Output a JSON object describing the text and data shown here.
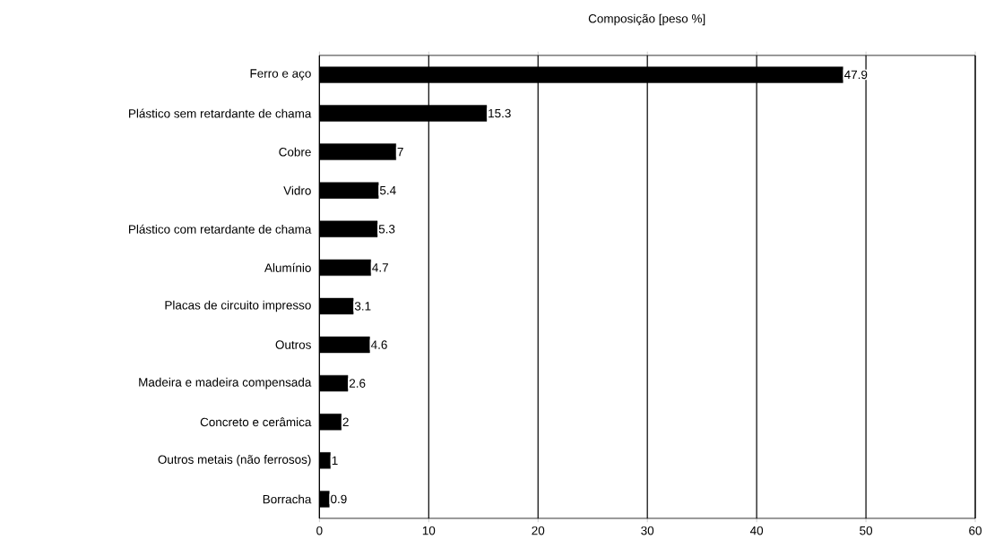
{
  "chart_data": {
    "type": "bar",
    "orientation": "horizontal",
    "title": "Composição [peso %]",
    "categories": [
      "Ferro e aço",
      "Plástico sem retardante de chama",
      "Cobre",
      "Vidro",
      "Plástico com retardante de chama",
      "Alumínio",
      "Placas de circuito impresso",
      "Outros",
      "Madeira e madeira compensada",
      "Concreto e cerâmica",
      "Outros metais (não ferrosos)",
      "Borracha"
    ],
    "values": [
      47.9,
      15.3,
      7,
      5.4,
      5.3,
      4.7,
      3.1,
      4.6,
      2.6,
      2,
      1,
      0.9
    ],
    "color": "#000000",
    "xlim": [
      0,
      60
    ],
    "xticks": [
      0,
      10,
      20,
      30,
      40,
      50,
      60
    ],
    "grid": "x",
    "data_labels": true
  }
}
